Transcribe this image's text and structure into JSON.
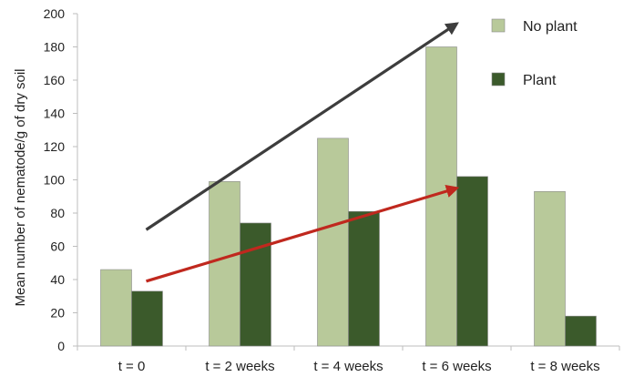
{
  "chart_data": {
    "type": "bar",
    "title": "",
    "xlabel": "",
    "ylabel": "Mean number of nematode/g of dry soil",
    "ylim": [
      0,
      200
    ],
    "yticks": [
      0,
      20,
      40,
      60,
      80,
      100,
      120,
      140,
      160,
      180,
      200
    ],
    "categories": [
      "t = 0",
      "t = 2 weeks",
      "t = 4 weeks",
      "t = 6 weeks",
      "t = 8 weeks"
    ],
    "series": [
      {
        "name": "No plant",
        "color": "#b8c99a",
        "values": [
          46,
          99,
          125,
          180,
          93
        ]
      },
      {
        "name": "Plant",
        "color": "#3b5a2b",
        "values": [
          33,
          74,
          81,
          102,
          18
        ]
      }
    ],
    "legend": "top-right",
    "grid": false,
    "annotations": [
      {
        "type": "arrow",
        "name": "no-plant-trend-arrow",
        "color": "#3d3d3d",
        "from": {
          "category": "t = 0",
          "value": 70
        },
        "to": {
          "category": "t = 6 weeks",
          "value": 194
        }
      },
      {
        "type": "arrow",
        "name": "plant-trend-arrow",
        "color": "#c0281e",
        "from": {
          "category": "t = 0",
          "value": 39
        },
        "to": {
          "category": "t = 6 weeks",
          "value": 95
        }
      }
    ]
  }
}
